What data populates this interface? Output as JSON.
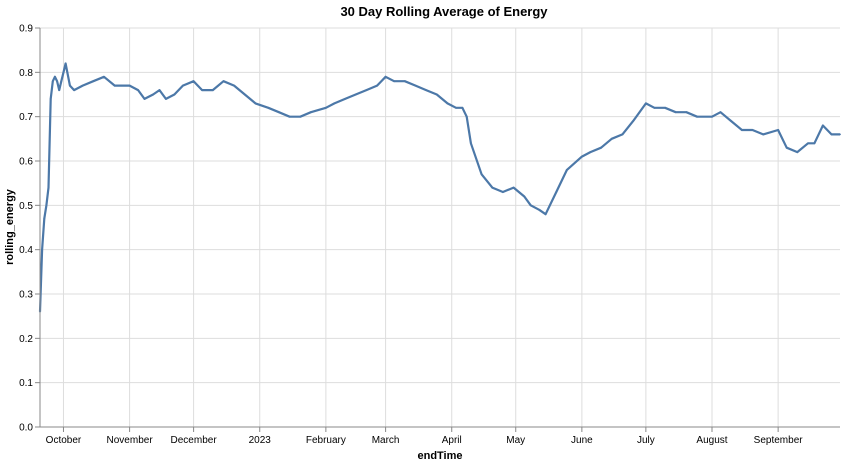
{
  "chart_data": {
    "type": "line",
    "title": "30 Day Rolling Average of Energy",
    "xlabel": "endTime",
    "ylabel": "rolling_energy",
    "ylim": [
      0,
      0.9
    ],
    "xlim": [
      "2022-09-20",
      "2023-09-30"
    ],
    "grid": true,
    "line_color": "#4c78a8",
    "yticks": [
      "0.0",
      "0.1",
      "0.2",
      "0.3",
      "0.4",
      "0.5",
      "0.6",
      "0.7",
      "0.8",
      "0.9"
    ],
    "xticks": [
      {
        "label": "October",
        "date": "2022-10-01"
      },
      {
        "label": "November",
        "date": "2022-11-01"
      },
      {
        "label": "December",
        "date": "2022-12-01"
      },
      {
        "label": "2023",
        "date": "2023-01-01"
      },
      {
        "label": "February",
        "date": "2023-02-01"
      },
      {
        "label": "March",
        "date": "2023-03-01"
      },
      {
        "label": "April",
        "date": "2023-04-01"
      },
      {
        "label": "May",
        "date": "2023-05-01"
      },
      {
        "label": "June",
        "date": "2023-06-01"
      },
      {
        "label": "July",
        "date": "2023-07-01"
      },
      {
        "label": "August",
        "date": "2023-08-01"
      },
      {
        "label": "September",
        "date": "2023-09-01"
      }
    ],
    "series": [
      {
        "x": [
          "2022-09-20",
          "2022-09-21",
          "2022-09-22",
          "2022-09-23",
          "2022-09-24",
          "2022-09-25",
          "2022-09-26",
          "2022-09-27",
          "2022-09-28",
          "2022-09-29",
          "2022-09-30",
          "2022-10-01",
          "2022-10-02",
          "2022-10-04",
          "2022-10-06",
          "2022-10-10",
          "2022-10-15",
          "2022-10-20",
          "2022-10-25",
          "2022-10-28",
          "2022-11-01",
          "2022-11-05",
          "2022-11-08",
          "2022-11-12",
          "2022-11-15",
          "2022-11-18",
          "2022-11-22",
          "2022-11-26",
          "2022-12-01",
          "2022-12-05",
          "2022-12-10",
          "2022-12-15",
          "2022-12-20",
          "2022-12-25",
          "2022-12-30",
          "2023-01-05",
          "2023-01-10",
          "2023-01-15",
          "2023-01-20",
          "2023-01-25",
          "2023-02-01",
          "2023-02-05",
          "2023-02-10",
          "2023-02-15",
          "2023-02-20",
          "2023-02-25",
          "2023-03-01",
          "2023-03-05",
          "2023-03-10",
          "2023-03-15",
          "2023-03-20",
          "2023-03-25",
          "2023-03-30",
          "2023-04-03",
          "2023-04-06",
          "2023-04-08",
          "2023-04-10",
          "2023-04-15",
          "2023-04-20",
          "2023-04-25",
          "2023-04-30",
          "2023-05-05",
          "2023-05-08",
          "2023-05-12",
          "2023-05-15",
          "2023-05-20",
          "2023-05-25",
          "2023-06-01",
          "2023-06-05",
          "2023-06-10",
          "2023-06-15",
          "2023-06-20",
          "2023-06-25",
          "2023-07-01",
          "2023-07-05",
          "2023-07-10",
          "2023-07-15",
          "2023-07-20",
          "2023-07-25",
          "2023-08-01",
          "2023-08-05",
          "2023-08-10",
          "2023-08-15",
          "2023-08-20",
          "2023-08-25",
          "2023-09-01",
          "2023-09-05",
          "2023-09-10",
          "2023-09-15",
          "2023-09-18",
          "2023-09-22",
          "2023-09-26",
          "2023-09-30"
        ],
        "y": [
          0.26,
          0.4,
          0.47,
          0.5,
          0.54,
          0.74,
          0.78,
          0.79,
          0.78,
          0.76,
          0.78,
          0.8,
          0.82,
          0.77,
          0.76,
          0.77,
          0.78,
          0.79,
          0.77,
          0.77,
          0.77,
          0.76,
          0.74,
          0.75,
          0.76,
          0.74,
          0.75,
          0.77,
          0.78,
          0.76,
          0.76,
          0.78,
          0.77,
          0.75,
          0.73,
          0.72,
          0.71,
          0.7,
          0.7,
          0.71,
          0.72,
          0.73,
          0.74,
          0.75,
          0.76,
          0.77,
          0.79,
          0.78,
          0.78,
          0.77,
          0.76,
          0.75,
          0.73,
          0.72,
          0.72,
          0.7,
          0.64,
          0.57,
          0.54,
          0.53,
          0.54,
          0.52,
          0.5,
          0.49,
          0.48,
          0.53,
          0.58,
          0.61,
          0.62,
          0.63,
          0.65,
          0.66,
          0.69,
          0.73,
          0.72,
          0.72,
          0.71,
          0.71,
          0.7,
          0.7,
          0.71,
          0.69,
          0.67,
          0.67,
          0.66,
          0.67,
          0.63,
          0.62,
          0.64,
          0.64,
          0.68,
          0.66,
          0.66
        ]
      }
    ]
  }
}
